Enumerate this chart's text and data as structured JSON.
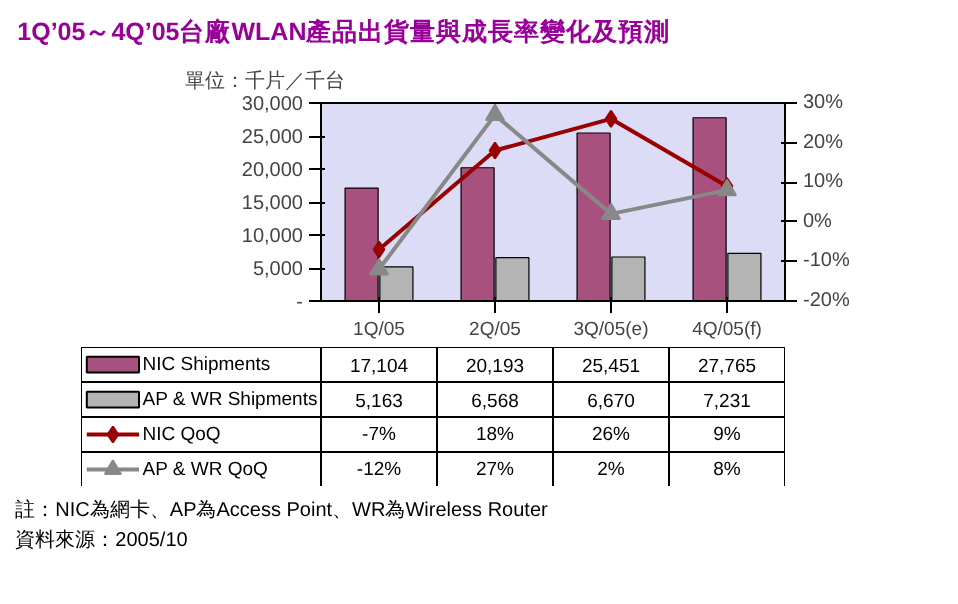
{
  "chart_data": {
    "type": "bar",
    "title": "1Q’05～4Q’05台廠WLAN產品出貨量與成長率變化及預測",
    "ylabel": "單位：千片／千台",
    "categories": [
      "1Q/05",
      "2Q/05",
      "3Q/05(e)",
      "4Q/05(f)"
    ],
    "series": [
      {
        "name": "NIC Shipments",
        "color": "#a8507e",
        "values": [
          17104,
          20193,
          25451,
          27765
        ],
        "value_labels": [
          "17,104",
          "20,193",
          "25,451",
          "27,765"
        ]
      },
      {
        "name": "AP & WR Shipments",
        "color": "#b4b4b4",
        "values": [
          5163,
          6568,
          6670,
          7231
        ],
        "value_labels": [
          "5,163",
          "6,568",
          "6,670",
          "7,231"
        ]
      },
      {
        "name": "NIC QoQ",
        "type": "line",
        "axis": "y2",
        "marker": "diamond",
        "color": "#990000",
        "values": [
          -7,
          18,
          26,
          9
        ],
        "value_labels": [
          "-7%",
          "18%",
          "26%",
          "9%"
        ]
      },
      {
        "name": "AP & WR QoQ",
        "type": "line",
        "axis": "y2",
        "marker": "triangle",
        "color": "#888888",
        "values": [
          -12,
          27,
          2,
          8
        ],
        "value_labels": [
          "-12%",
          "27%",
          "2%",
          "8%"
        ]
      }
    ],
    "ylim": [
      0,
      30000
    ],
    "yticks": [
      {
        "value": 0,
        "label": "-"
      },
      {
        "value": 5000,
        "label": "5,000"
      },
      {
        "value": 10000,
        "label": "10,000"
      },
      {
        "value": 15000,
        "label": "15,000"
      },
      {
        "value": 20000,
        "label": "20,000"
      },
      {
        "value": 25000,
        "label": "25,000"
      },
      {
        "value": 30000,
        "label": "30,000"
      }
    ],
    "y2lim": [
      -20,
      30
    ],
    "y2ticks": [
      {
        "value": -20,
        "label": "-20%"
      },
      {
        "value": -10,
        "label": "-10%"
      },
      {
        "value": 0,
        "label": "0%"
      },
      {
        "value": 10,
        "label": "10%"
      },
      {
        "value": 20,
        "label": "20%"
      },
      {
        "value": 30,
        "label": "30%"
      }
    ],
    "legend": "bottom",
    "data_labels": true,
    "annotations": [
      "註：NIC為網卡、AP為Access Point、WR為Wireless Router",
      "資料來源：2005/10"
    ]
  }
}
